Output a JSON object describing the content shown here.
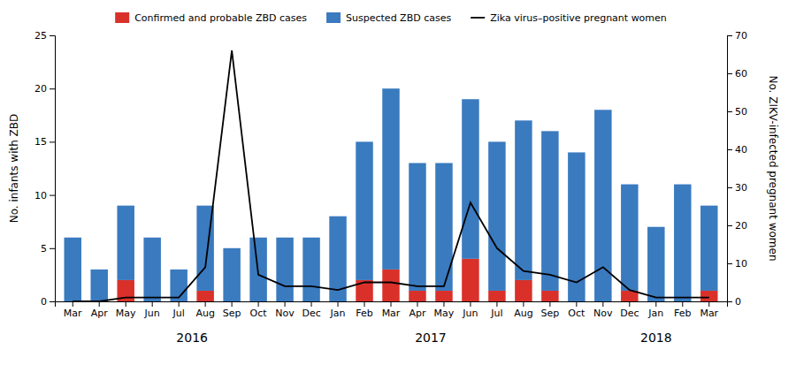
{
  "chart_data": {
    "type": "bar",
    "stacked": true,
    "grid": false,
    "legend": "top",
    "categories": [
      "Mar",
      "Apr",
      "May",
      "Jun",
      "Jul",
      "Aug",
      "Sep",
      "Oct",
      "Nov",
      "Dec",
      "Jan",
      "Feb",
      "Mar",
      "Apr",
      "May",
      "Jun",
      "Jul",
      "Aug",
      "Sep",
      "Oct",
      "Nov",
      "Dec",
      "Jan",
      "Feb",
      "Mar"
    ],
    "series": [
      {
        "name": "Confirmed and probable ZBD cases",
        "type": "bar",
        "color": "#d9312a",
        "values": [
          0,
          0,
          2,
          0,
          0,
          1,
          0,
          0,
          0,
          0,
          0,
          2,
          3,
          1,
          1,
          4,
          1,
          2,
          1,
          0,
          0,
          1,
          0,
          0,
          1
        ]
      },
      {
        "name": "Suspected ZBD cases",
        "type": "bar",
        "color": "#3a7abf",
        "values": [
          6,
          3,
          7,
          6,
          3,
          8,
          5,
          6,
          6,
          6,
          8,
          13,
          17,
          12,
          12,
          15,
          14,
          15,
          15,
          14,
          18,
          10,
          7,
          11,
          8
        ]
      },
      {
        "name": "Zika virus–positive pregnant women",
        "type": "line",
        "axis": "y2",
        "color": "#000000",
        "values": [
          0,
          0,
          1,
          1,
          1,
          9,
          66,
          7,
          4,
          4,
          3,
          5,
          5,
          4,
          4,
          26,
          14,
          8,
          7,
          5,
          9,
          3,
          1,
          1,
          1
        ]
      }
    ],
    "ylabel": "No. infants with ZBD",
    "y2label": "No. ZIKV-infected pregnant women",
    "ylim": [
      0,
      25
    ],
    "yticks": [
      0,
      5,
      10,
      15,
      20,
      25
    ],
    "y2lim": [
      0,
      70
    ],
    "y2ticks": [
      0,
      10,
      20,
      30,
      40,
      50,
      60,
      70
    ],
    "annotations": [
      {
        "text": "2016",
        "x": 4.5
      },
      {
        "text": "2017",
        "x": 13.5
      },
      {
        "text": "2018",
        "x": 22.0
      }
    ]
  }
}
